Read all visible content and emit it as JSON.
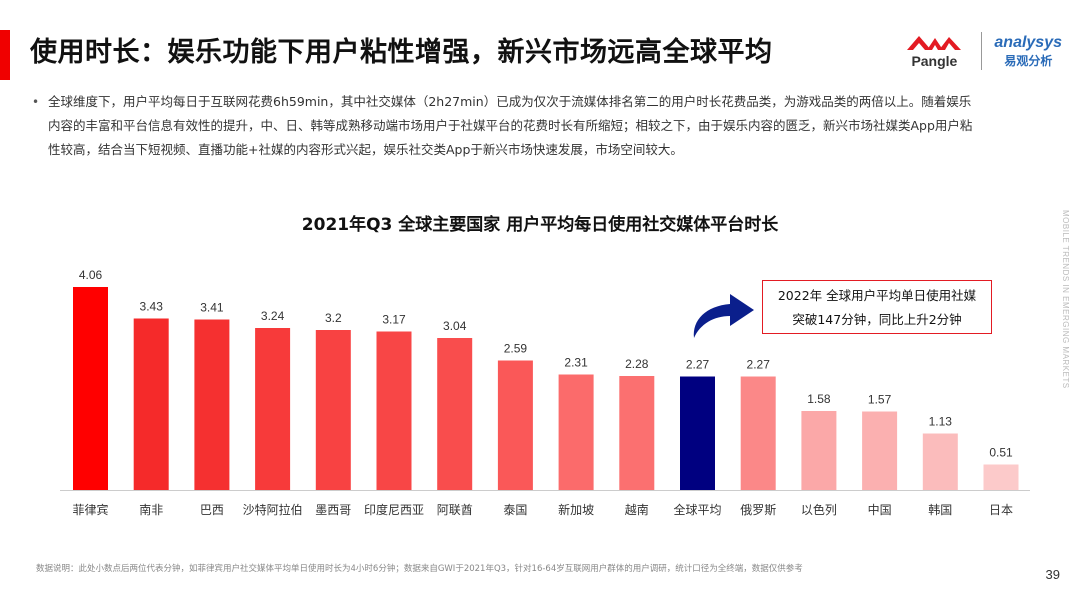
{
  "header": {
    "title": "使用时长：娱乐功能下用户粘性增强，新兴市场远高全球平均",
    "logo_pangle": "Pangle",
    "logo_analysys_en": "analysys",
    "logo_analysys_cn": "易观分析"
  },
  "intro": {
    "text": "全球维度下，用户平均每日于互联网花费6h59min，其中社交媒体（2h27min）已成为仅次于流媒体排名第二的用户时长花费品类，为游戏品类的两倍以上。随着娱乐内容的丰富和平台信息有效性的提升，中、日、韩等成熟移动端市场用户于社媒平台的花费时长有所缩短；相较之下，由于娱乐内容的匮乏，新兴市场社媒类App用户粘性较高，结合当下短视频、直播功能+社媒的内容形式兴起，娱乐社交类App于新兴市场快速发展，市场空间较大。"
  },
  "side_text": "MOBILE TRENDS IN EMERGING MARKETS",
  "chart_data": {
    "type": "bar",
    "title": "2021年Q3 全球主要国家 用户平均每日使用社交媒体平台时长",
    "categories": [
      "菲律宾",
      "南非",
      "巴西",
      "沙特阿拉伯",
      "墨西哥",
      "印度尼西亚",
      "阿联酋",
      "泰国",
      "新加坡",
      "越南",
      "全球平均",
      "俄罗斯",
      "以色列",
      "中国",
      "韩国",
      "日本"
    ],
    "values": [
      4.06,
      3.43,
      3.41,
      3.24,
      3.2,
      3.17,
      3.04,
      2.59,
      2.31,
      2.28,
      2.27,
      2.27,
      1.58,
      1.57,
      1.13,
      0.51
    ],
    "value_labels": [
      "4.06",
      "3.43",
      "3.41",
      "3.24",
      "3.2",
      "3.17",
      "3.04",
      "2.59",
      "2.31",
      "2.28",
      "2.27",
      "2.27",
      "1.58",
      "1.57",
      "1.13",
      "0.51"
    ],
    "ylim": [
      0,
      4.06
    ],
    "highlight_category": "全球平均",
    "colors": {
      "bars": [
        "#ff0000",
        "#f52a2a",
        "#f53030",
        "#f73a3a",
        "#f84242",
        "#f84646",
        "#f94d4d",
        "#fa5858",
        "#fb6b6b",
        "#fb7070",
        "#000080",
        "#fb8888",
        "#fba8a8",
        "#fbb0b0",
        "#fbbcbc",
        "#fccaca"
      ],
      "highlight": "#000080",
      "axis": "#cccccc",
      "arrow": "#0b1f8c"
    },
    "annotation": {
      "line1": "2022年 全球用户平均单日使用社媒",
      "line2": "突破147分钟，同比上升2分钟"
    }
  },
  "footer": {
    "note": "数据说明：此处小数点后两位代表分钟，如菲律宾用户社交媒体平均单日使用时长为4小时6分钟；数据来自GWI于2021年Q3，针对16-64岁互联网用户群体的用户调研，统计口径为全终端，数据仅供参考",
    "page_number": "39"
  },
  "theme": {
    "accent": "#ff0000"
  }
}
